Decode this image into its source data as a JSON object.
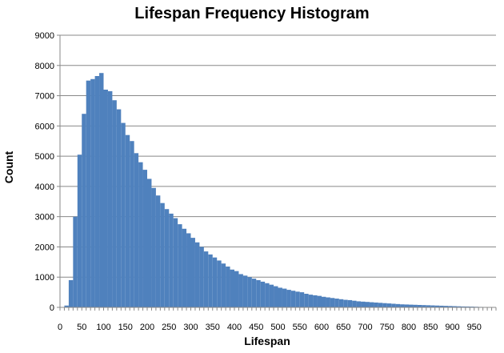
{
  "chart_data": {
    "type": "bar",
    "title": "Lifespan Frequency Histogram",
    "xlabel": "Lifespan",
    "ylabel": "Count",
    "ylim": [
      0,
      9000
    ],
    "xlim": [
      0,
      1000
    ],
    "bin_width": 10,
    "y_ticks": [
      "0",
      "1000",
      "2000",
      "3000",
      "4000",
      "5000",
      "6000",
      "7000",
      "8000",
      "9000"
    ],
    "x_ticks": [
      "0",
      "50",
      "100",
      "150",
      "200",
      "250",
      "300",
      "350",
      "400",
      "450",
      "500",
      "550",
      "600",
      "650",
      "700",
      "750",
      "800",
      "850",
      "900",
      "950"
    ],
    "grid": "horizontal",
    "bar_color": "#4F81BD",
    "bins": [
      0,
      10,
      20,
      30,
      40,
      50,
      60,
      70,
      80,
      90,
      100,
      110,
      120,
      130,
      140,
      150,
      160,
      170,
      180,
      190,
      200,
      210,
      220,
      230,
      240,
      250,
      260,
      270,
      280,
      290,
      300,
      310,
      320,
      330,
      340,
      350,
      360,
      370,
      380,
      390,
      400,
      410,
      420,
      430,
      440,
      450,
      460,
      470,
      480,
      490,
      500,
      510,
      520,
      530,
      540,
      550,
      560,
      570,
      580,
      590,
      600,
      610,
      620,
      630,
      640,
      650,
      660,
      670,
      680,
      690,
      700,
      710,
      720,
      730,
      740,
      750,
      760,
      770,
      780,
      790,
      800,
      810,
      820,
      830,
      840,
      850,
      860,
      870,
      880,
      890,
      900,
      910,
      920,
      930,
      940,
      950,
      960,
      970,
      980,
      990
    ],
    "values": [
      10,
      60,
      900,
      3000,
      5050,
      6400,
      7500,
      7550,
      7650,
      7750,
      7200,
      7150,
      6850,
      6550,
      6100,
      5700,
      5500,
      5100,
      4800,
      4550,
      4250,
      3950,
      3700,
      3450,
      3250,
      3100,
      2950,
      2750,
      2600,
      2450,
      2300,
      2150,
      2000,
      1850,
      1750,
      1650,
      1550,
      1450,
      1350,
      1250,
      1200,
      1100,
      1050,
      1000,
      950,
      900,
      850,
      800,
      750,
      700,
      650,
      620,
      580,
      550,
      520,
      500,
      450,
      420,
      400,
      380,
      350,
      330,
      310,
      290,
      270,
      250,
      240,
      220,
      200,
      190,
      180,
      170,
      160,
      150,
      140,
      130,
      120,
      110,
      100,
      95,
      90,
      85,
      80,
      75,
      70,
      65,
      60,
      55,
      50,
      45,
      40,
      35,
      30,
      28,
      25,
      20,
      15,
      10,
      8,
      5
    ]
  }
}
